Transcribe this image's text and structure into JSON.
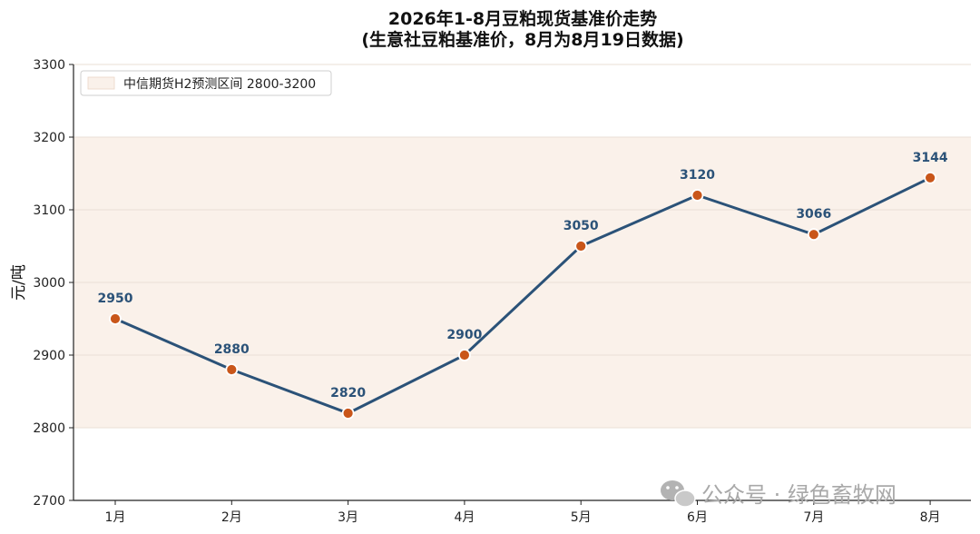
{
  "chart_data": {
    "type": "line",
    "title": "2026年1-8月豆粕现货基准价走势",
    "subtitle": "(生意社豆粕基准价，8月为8月19日数据)",
    "xlabel": "",
    "ylabel": "元/吨",
    "categories": [
      "1月",
      "2月",
      "3月",
      "4月",
      "5月",
      "6月",
      "7月",
      "8月"
    ],
    "values": [
      2950,
      2880,
      2820,
      2900,
      3050,
      3120,
      3066,
      3144
    ],
    "data_labels": [
      "2950",
      "2880",
      "2820",
      "2900",
      "3050",
      "3120",
      "3066",
      "3144"
    ],
    "ylim": [
      2700,
      3300
    ],
    "yticks": [
      2700,
      2800,
      2900,
      3000,
      3100,
      3200,
      3300
    ],
    "ytick_labels": [
      "2700",
      "2800",
      "2900",
      "3000",
      "3100",
      "3200",
      "3300"
    ],
    "band": {
      "label": "中信期货H2预测区间 2800-3200",
      "from": 2800,
      "to": 3200,
      "color": "#faf1ea"
    },
    "grid": true,
    "legend_position": "top-left",
    "line_color": "#2b5278",
    "marker_color": "#c9561a"
  },
  "watermark": {
    "text": "公众号 · 绿色畜牧网",
    "icon": "wechat-icon"
  }
}
